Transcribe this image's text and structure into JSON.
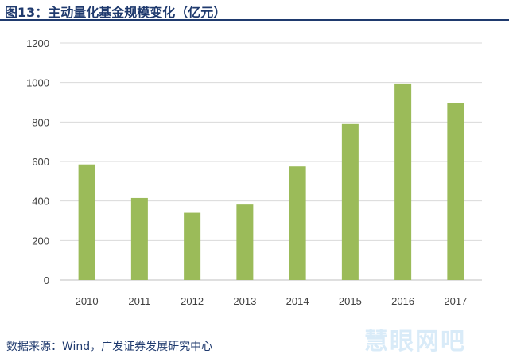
{
  "header": {
    "title": "图13：主动量化基金规模变化（亿元）"
  },
  "footer": {
    "source": "数据来源：Wind，广发证券发展研究中心"
  },
  "watermark": {
    "text": "慧眼网吧"
  },
  "colors": {
    "bar": "#9bbb59",
    "grid": "#d9d9d9",
    "title": "#1f3a6e"
  },
  "chart_data": {
    "type": "bar",
    "title": "主动量化基金规模变化（亿元）",
    "categories": [
      "2010",
      "2011",
      "2012",
      "2013",
      "2014",
      "2015",
      "2016",
      "2017"
    ],
    "values": [
      585,
      415,
      340,
      382,
      575,
      790,
      995,
      895
    ],
    "yticks": [
      "0",
      "200",
      "400",
      "600",
      "800",
      "1000",
      "1200"
    ],
    "ylim": [
      0,
      1200
    ],
    "grid": true,
    "legend": "none"
  }
}
